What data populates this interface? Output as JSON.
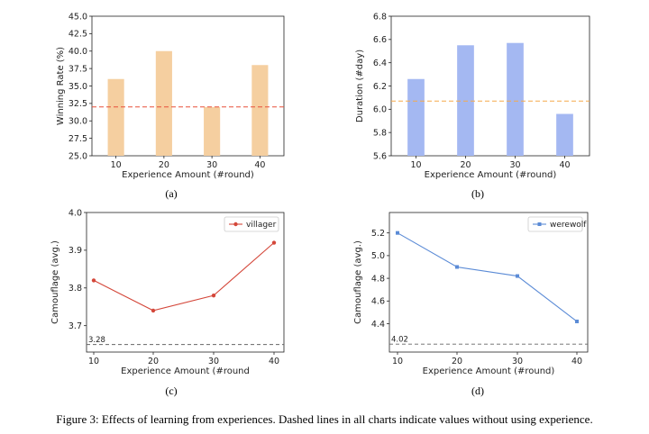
{
  "caption": "Figure 3: Effects of learning from experiences. Dashed lines in all charts indicate values without using experience.",
  "chart_data": [
    {
      "id": "a",
      "type": "bar",
      "sublabel": "(a)",
      "categories": [
        "10",
        "20",
        "30",
        "40"
      ],
      "values": [
        36.0,
        40.0,
        32.0,
        38.0
      ],
      "xlabel": "Experience Amount (#round)",
      "ylabel": "Winning Rate (%)",
      "ylim": [
        25.0,
        45.0
      ],
      "yticks": [
        "25.0",
        "27.5",
        "30.0",
        "32.5",
        "35.0",
        "37.5",
        "40.0",
        "42.5",
        "45.0"
      ],
      "baseline": 32.0,
      "bar_color": "#f5cfa0",
      "baseline_color": "#e8503a"
    },
    {
      "id": "b",
      "type": "bar",
      "sublabel": "(b)",
      "categories": [
        "10",
        "20",
        "30",
        "40"
      ],
      "values": [
        6.26,
        6.55,
        6.57,
        5.96
      ],
      "xlabel": "Experience Amount (#round)",
      "ylabel": "Duration (#day)",
      "ylim": [
        5.6,
        6.8
      ],
      "yticks": [
        "5.6",
        "5.8",
        "6.0",
        "6.2",
        "6.4",
        "6.6",
        "6.8"
      ],
      "baseline": 6.07,
      "bar_color": "#a4b8f2",
      "baseline_color": "#f5a94a"
    },
    {
      "id": "c",
      "type": "line",
      "sublabel": "(c)",
      "x": [
        10,
        20,
        30,
        40
      ],
      "series": [
        {
          "name": "villager",
          "values": [
            3.82,
            3.74,
            3.78,
            3.92
          ],
          "color": "#d4473a"
        }
      ],
      "xlabel": "Experience Amount (#round",
      "ylabel": "Camouflage (avg.)",
      "xticks": [
        "10",
        "20",
        "30",
        "40"
      ],
      "yticks": [
        "3.7",
        "3.8",
        "3.9",
        "4.0"
      ],
      "ylim": [
        3.63,
        4.0
      ],
      "baseline": 3.65,
      "baseline_label": "3.28",
      "baseline_color": "#666666",
      "legend": "upper-right"
    },
    {
      "id": "d",
      "type": "line",
      "sublabel": "(d)",
      "x": [
        10,
        20,
        30,
        40
      ],
      "series": [
        {
          "name": "werewolf",
          "values": [
            5.2,
            4.9,
            4.82,
            4.42
          ],
          "color": "#5b8bd6"
        }
      ],
      "xlabel": "Experience Amount (#round)",
      "ylabel": "Camouflage (avg.)",
      "xticks": [
        "10",
        "20",
        "30",
        "40"
      ],
      "yticks": [
        "4.4",
        "4.6",
        "4.8",
        "5.0",
        "5.2"
      ],
      "ylim": [
        4.15,
        5.38
      ],
      "baseline": 4.22,
      "baseline_label": "4.02",
      "baseline_color": "#666666",
      "legend": "upper-right"
    }
  ]
}
